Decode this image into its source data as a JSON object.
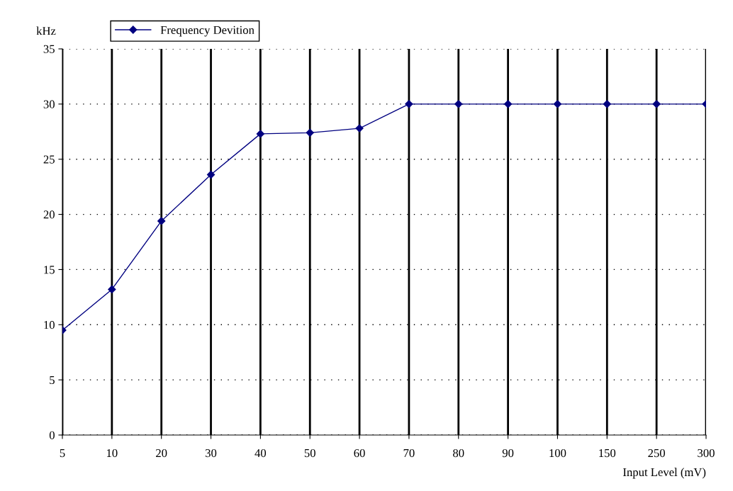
{
  "chart_data": {
    "type": "line",
    "xlabel": "Input Level (mV)",
    "ylabel": "kHz",
    "categories": [
      "5",
      "10",
      "20",
      "30",
      "40",
      "50",
      "60",
      "70",
      "80",
      "90",
      "100",
      "150",
      "250",
      "300"
    ],
    "series": [
      {
        "name": "Frequency Devition",
        "color": "#000080",
        "values": [
          9.5,
          13.2,
          19.4,
          23.6,
          27.3,
          27.4,
          27.8,
          30,
          30,
          30,
          30,
          30,
          30,
          30
        ]
      }
    ],
    "ylim": [
      0,
      35
    ],
    "yticks": [
      0,
      5,
      10,
      15,
      20,
      25,
      30,
      35
    ],
    "grid": true,
    "legend": "top left",
    "marker": "diamond",
    "line_style": "solid"
  }
}
